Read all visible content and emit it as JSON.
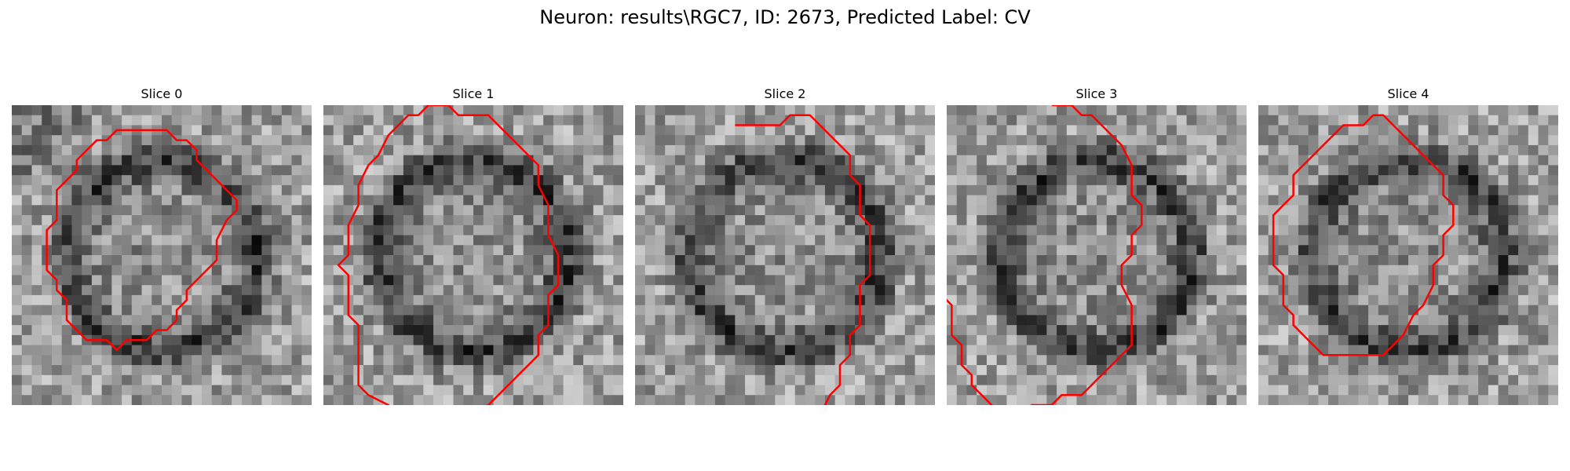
{
  "figure": {
    "title": "Neuron: results\\RGC7, ID: 2673, Predicted Label: CV",
    "contour_color": "#ff0000"
  },
  "slices": [
    {
      "label": "Slice 0",
      "seed": 11,
      "contour": [
        [
          10.5,
          2.5
        ],
        [
          15.5,
          2.5
        ],
        [
          16.5,
          3.5
        ],
        [
          17.5,
          3.5
        ],
        [
          18.5,
          4.5
        ],
        [
          18.5,
          5.5
        ],
        [
          21.5,
          8.5
        ],
        [
          22.5,
          9.5
        ],
        [
          22.5,
          10.5
        ],
        [
          21.5,
          11.5
        ],
        [
          20.5,
          13.5
        ],
        [
          20.5,
          15.5
        ],
        [
          17.5,
          18.5
        ],
        [
          17.5,
          19.5
        ],
        [
          16.5,
          20.5
        ],
        [
          16.5,
          21.5
        ],
        [
          15.5,
          22.5
        ],
        [
          14.5,
          22.5
        ],
        [
          13.5,
          23.5
        ],
        [
          11.5,
          23.5
        ],
        [
          10.5,
          24.5
        ],
        [
          9.5,
          23.5
        ],
        [
          7.5,
          23.5
        ],
        [
          5.5,
          21.5
        ],
        [
          5.5,
          19.5
        ],
        [
          4.5,
          18.5
        ],
        [
          4.5,
          17.5
        ],
        [
          3.5,
          16.5
        ],
        [
          3.5,
          12.5
        ],
        [
          4.5,
          11.5
        ],
        [
          4.5,
          8.5
        ],
        [
          6.5,
          6.5
        ],
        [
          6.5,
          5.5
        ],
        [
          8.5,
          3.5
        ],
        [
          9.5,
          3.5
        ]
      ]
    },
    {
      "label": "Slice 1",
      "seed": 23,
      "contour": [
        [
          10.5,
          0
        ],
        [
          12.5,
          0
        ],
        [
          13.5,
          1
        ],
        [
          16.5,
          1
        ],
        [
          17.5,
          2
        ],
        [
          18.5,
          3
        ],
        [
          20.5,
          5
        ],
        [
          21.5,
          6
        ],
        [
          21.5,
          8
        ],
        [
          22.5,
          10
        ],
        [
          22.5,
          13
        ],
        [
          23.5,
          15
        ],
        [
          23.5,
          18
        ],
        [
          22.5,
          19
        ],
        [
          22.5,
          22
        ],
        [
          21.5,
          23
        ],
        [
          21.5,
          25
        ],
        [
          20.5,
          26
        ],
        [
          19.5,
          27
        ],
        [
          18.5,
          28
        ],
        [
          16.5,
          30
        ],
        [
          13.5,
          31
        ],
        [
          10.5,
          31
        ],
        [
          7.5,
          31
        ],
        [
          6.5,
          30
        ],
        [
          4.5,
          29
        ],
        [
          3.5,
          28
        ],
        [
          3.5,
          22
        ],
        [
          2.5,
          21
        ],
        [
          2.5,
          17
        ],
        [
          1.5,
          16
        ],
        [
          2.5,
          15
        ],
        [
          2.5,
          12
        ],
        [
          3.5,
          10
        ],
        [
          3.5,
          8
        ],
        [
          4.5,
          6
        ],
        [
          5.5,
          5
        ],
        [
          6.5,
          3
        ],
        [
          7.5,
          2
        ],
        [
          8.5,
          1
        ],
        [
          9.5,
          1
        ]
      ]
    },
    {
      "label": "Slice 2",
      "seed": 37,
      "contour": [
        [
          10,
          2
        ],
        [
          14.5,
          2
        ],
        [
          15.5,
          1
        ],
        [
          17.5,
          1
        ],
        [
          18.5,
          2
        ],
        [
          19.5,
          3
        ],
        [
          20.5,
          4
        ],
        [
          21.5,
          5
        ],
        [
          21.5,
          7
        ],
        [
          22.5,
          8
        ],
        [
          22.5,
          11
        ],
        [
          23.5,
          12
        ],
        [
          23.5,
          17
        ],
        [
          22.5,
          18
        ],
        [
          22.5,
          22
        ],
        [
          21.5,
          23
        ],
        [
          21.5,
          25
        ],
        [
          20.5,
          26
        ],
        [
          20.5,
          28
        ],
        [
          19.5,
          29
        ],
        [
          18.5,
          31
        ],
        [
          17.5,
          32
        ],
        [
          16.5,
          33
        ],
        [
          15.5,
          34
        ],
        [
          14.5,
          35
        ],
        [
          13.5,
          35
        ],
        [
          12.5,
          36
        ],
        [
          11.5,
          36
        ],
        [
          10.5,
          37
        ]
      ]
    },
    {
      "label": "Slice 3",
      "seed": 53,
      "contour": [
        [
          10.5,
          0
        ],
        [
          12.5,
          0
        ],
        [
          13.5,
          1
        ],
        [
          14.5,
          1
        ],
        [
          15.5,
          2
        ],
        [
          16.5,
          3
        ],
        [
          17.5,
          4
        ],
        [
          18.5,
          6
        ],
        [
          18.5,
          9
        ],
        [
          19.5,
          10
        ],
        [
          19.5,
          12
        ],
        [
          18.5,
          13
        ],
        [
          18.5,
          15
        ],
        [
          17.5,
          16
        ],
        [
          17.5,
          18
        ],
        [
          18.5,
          20
        ],
        [
          18.5,
          24
        ],
        [
          17.5,
          25
        ],
        [
          16.5,
          26
        ],
        [
          15.5,
          27
        ],
        [
          14.5,
          28
        ],
        [
          13.5,
          29
        ],
        [
          11.5,
          29
        ],
        [
          10.5,
          30
        ],
        [
          8.5,
          30
        ],
        [
          7.5,
          31
        ],
        [
          5.5,
          31
        ],
        [
          4.5,
          30
        ],
        [
          3.5,
          29
        ],
        [
          2.5,
          28
        ],
        [
          2.5,
          27
        ],
        [
          1.5,
          26
        ],
        [
          1.5,
          24
        ],
        [
          0.5,
          23
        ],
        [
          0.5,
          20
        ],
        [
          -0.5,
          19
        ]
      ]
    },
    {
      "label": "Slice 4",
      "seed": 71,
      "contour": [
        [
          11.5,
          1
        ],
        [
          12.5,
          1
        ],
        [
          13.5,
          2
        ],
        [
          14.5,
          3
        ],
        [
          15.5,
          4
        ],
        [
          16.5,
          5
        ],
        [
          17.5,
          6
        ],
        [
          18.5,
          7
        ],
        [
          18.5,
          9
        ],
        [
          19.5,
          10
        ],
        [
          19.5,
          12
        ],
        [
          18.5,
          13
        ],
        [
          18.5,
          15
        ],
        [
          17.5,
          16
        ],
        [
          17.5,
          18
        ],
        [
          16.5,
          20
        ],
        [
          15.5,
          21
        ],
        [
          14.5,
          23
        ],
        [
          13.5,
          24
        ],
        [
          12.5,
          25
        ],
        [
          11.5,
          25
        ],
        [
          9.5,
          25
        ],
        [
          6.5,
          25
        ],
        [
          5.5,
          24
        ],
        [
          4.5,
          23
        ],
        [
          3.5,
          22
        ],
        [
          3.5,
          21
        ],
        [
          2.5,
          20
        ],
        [
          2.5,
          17
        ],
        [
          1.5,
          16
        ],
        [
          1.5,
          11
        ],
        [
          2.5,
          10
        ],
        [
          3.5,
          9
        ],
        [
          3.5,
          7
        ],
        [
          4.5,
          6
        ],
        [
          5.5,
          5
        ],
        [
          6.5,
          4
        ],
        [
          7.5,
          3
        ],
        [
          8.5,
          2
        ],
        [
          10.5,
          2
        ]
      ]
    }
  ]
}
